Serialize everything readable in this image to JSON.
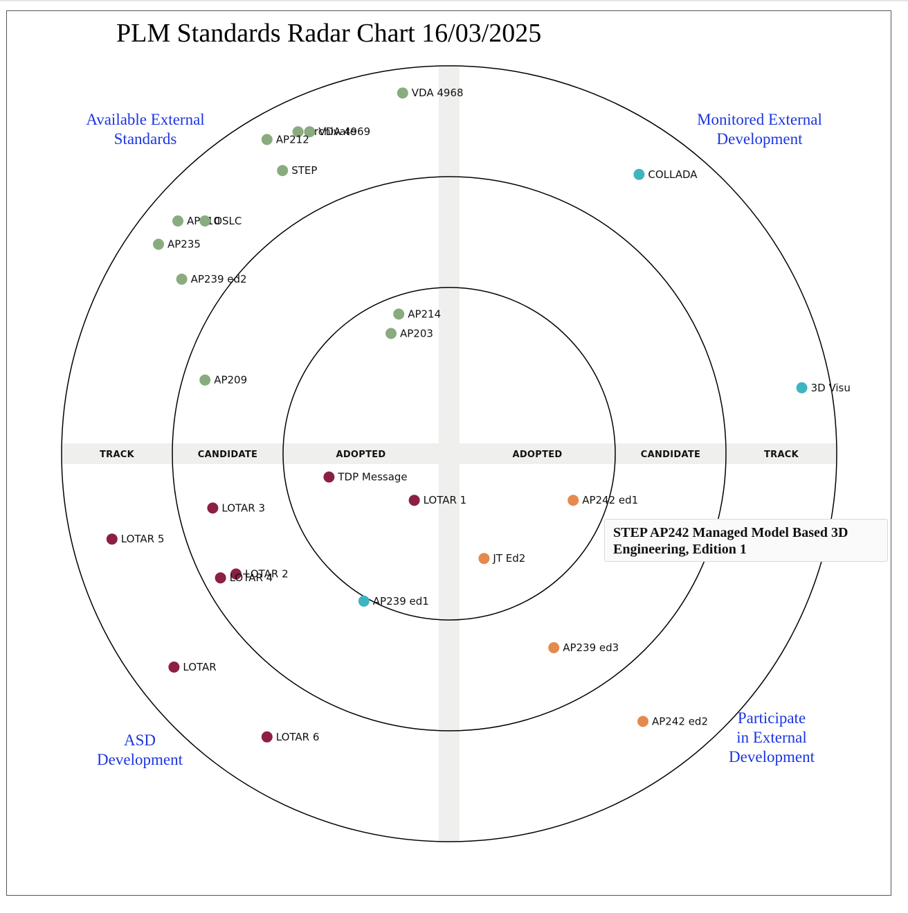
{
  "title": "PLM Standards Radar Chart 16/03/2025",
  "quadrants": {
    "top_left": "Available External\nStandards",
    "top_right": "Monitored External\nDevelopment",
    "bottom_left": "ASD\nDevelopment",
    "bottom_right": "Participate\nin External\nDevelopment"
  },
  "tooltip": "STEP AP242 Managed Model Based 3D Engineering, Edition 1",
  "colors": {
    "available": "#8aab7e",
    "monitored": "#3fb4c1",
    "asd": "#8c1f46",
    "participate": "#e58a4e",
    "band": "#efefee",
    "ring": "#000000"
  },
  "chart_data": {
    "type": "scatter",
    "rings": [
      "ADOPTED",
      "CANDIDATE",
      "TRACK"
    ],
    "ring_labels_left": [
      "TRACK",
      "CANDIDATE",
      "ADOPTED"
    ],
    "ring_labels_right": [
      "ADOPTED",
      "CANDIDATE",
      "TRACK"
    ],
    "series": [
      {
        "name": "Available External Standards",
        "color": "#8aab7e",
        "points": [
          {
            "label": "VDA 4968",
            "x": -0.12,
            "y": 0.93
          },
          {
            "label": "Archivate",
            "x": -0.39,
            "y": 0.83
          },
          {
            "label": "VDA 4969",
            "x": -0.36,
            "y": 0.83
          },
          {
            "label": "AP212",
            "x": -0.47,
            "y": 0.81
          },
          {
            "label": "STEP",
            "x": -0.43,
            "y": 0.73
          },
          {
            "label": "AP210",
            "x": -0.7,
            "y": 0.6
          },
          {
            "label": "OSLC",
            "x": -0.63,
            "y": 0.6
          },
          {
            "label": "AP235",
            "x": -0.75,
            "y": 0.54
          },
          {
            "label": "AP239 ed2",
            "x": -0.69,
            "y": 0.45
          },
          {
            "label": "AP214",
            "x": -0.13,
            "y": 0.36
          },
          {
            "label": "AP203",
            "x": -0.15,
            "y": 0.31
          },
          {
            "label": "AP209",
            "x": -0.63,
            "y": 0.19
          }
        ]
      },
      {
        "name": "Monitored External Development",
        "color": "#3fb4c1",
        "points": [
          {
            "label": "COLLADA",
            "x": 0.49,
            "y": 0.72
          },
          {
            "label": "3D Visu",
            "x": 0.91,
            "y": 0.17
          },
          {
            "label": "AP239 ed1",
            "x": -0.22,
            "y": -0.38
          }
        ]
      },
      {
        "name": "ASD Development",
        "color": "#8c1f46",
        "points": [
          {
            "label": "TDP Message",
            "x": -0.31,
            "y": -0.06
          },
          {
            "label": "LOTAR 1",
            "x": -0.09,
            "y": -0.12
          },
          {
            "label": "LOTAR 3",
            "x": -0.61,
            "y": -0.14
          },
          {
            "label": "LOTAR 5",
            "x": -0.87,
            "y": -0.22
          },
          {
            "label": "LOTAR 2",
            "x": -0.55,
            "y": -0.31
          },
          {
            "label": "LOTAR 4",
            "x": -0.59,
            "y": -0.32
          },
          {
            "label": "LOTAR",
            "x": -0.71,
            "y": -0.55
          },
          {
            "label": "LOTAR 6",
            "x": -0.47,
            "y": -0.73
          }
        ]
      },
      {
        "name": "Participate in External Development",
        "color": "#e58a4e",
        "points": [
          {
            "label": "AP242 ed1",
            "x": 0.32,
            "y": -0.12
          },
          {
            "label": "JT Ed2",
            "x": 0.09,
            "y": -0.27
          },
          {
            "label": "AP239 ed3",
            "x": 0.27,
            "y": -0.5
          },
          {
            "label": "AP242 ed2",
            "x": 0.5,
            "y": -0.69
          }
        ]
      }
    ]
  }
}
